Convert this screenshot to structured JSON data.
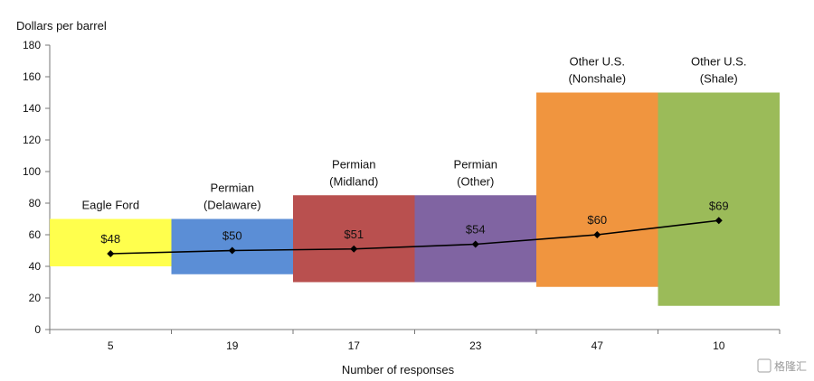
{
  "chart_data": {
    "type": "bar",
    "title": "",
    "ylabel": "Dollars per barrel",
    "xlabel": "Number of responses",
    "ylim": [
      0,
      180
    ],
    "yticks": [
      0,
      20,
      40,
      60,
      80,
      100,
      120,
      140,
      160,
      180
    ],
    "grid": false,
    "categories": [
      {
        "label": [
          "Eagle Ford"
        ],
        "responses": "5",
        "low": 40,
        "high": 70,
        "price": 48,
        "price_label": "$48",
        "color": "#FFFF4D"
      },
      {
        "label": [
          "Permian",
          "(Delaware)"
        ],
        "responses": "19",
        "low": 35,
        "high": 70,
        "price": 50,
        "price_label": "$50",
        "color": "#5B8ED6"
      },
      {
        "label": [
          "Permian",
          "(Midland)"
        ],
        "responses": "17",
        "low": 30,
        "high": 85,
        "price": 51,
        "price_label": "$51",
        "color": "#B9504F"
      },
      {
        "label": [
          "Permian",
          "(Other)"
        ],
        "responses": "23",
        "low": 30,
        "high": 85,
        "price": 54,
        "price_label": "$54",
        "color": "#8064A2"
      },
      {
        "label": [
          "Other U.S.",
          "(Nonshale)"
        ],
        "responses": "47",
        "low": 27,
        "high": 150,
        "price": 60,
        "price_label": "$60",
        "color": "#F0953F"
      },
      {
        "label": [
          "Other U.S.",
          "(Shale)"
        ],
        "responses": "10",
        "low": 15,
        "high": 150,
        "price": 69,
        "price_label": "$69",
        "color": "#9BBB59"
      }
    ],
    "line": {
      "color": "#000000",
      "marker": "diamond"
    }
  },
  "watermark": {
    "text": "格隆汇"
  }
}
